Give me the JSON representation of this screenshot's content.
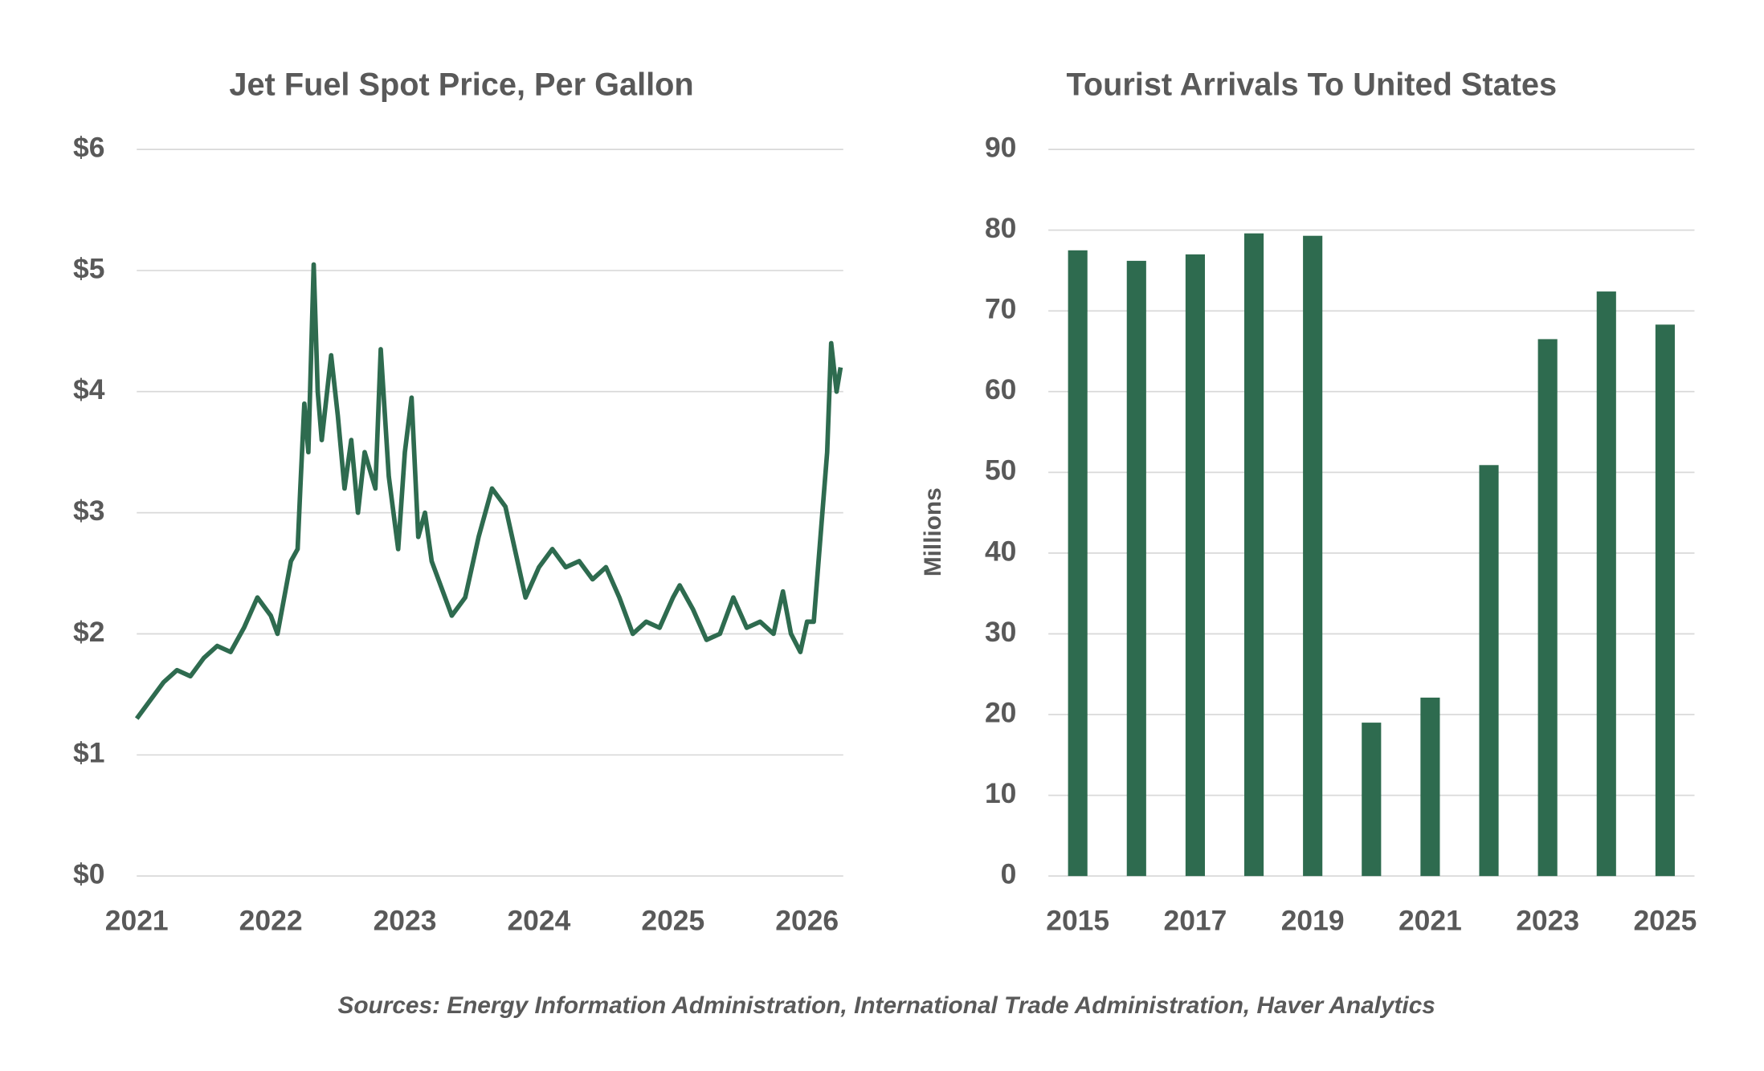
{
  "chart_data": [
    {
      "type": "line",
      "title": "Jet Fuel Spot Price, Per Gallon",
      "color": "#2e6b4f",
      "grid": true,
      "x": [
        2021.0,
        2021.1,
        2021.2,
        2021.3,
        2021.4,
        2021.5,
        2021.6,
        2021.7,
        2021.8,
        2021.9,
        2022.0,
        2022.05,
        2022.1,
        2022.15,
        2022.2,
        2022.22,
        2022.25,
        2022.28,
        2022.32,
        2022.35,
        2022.38,
        2022.45,
        2022.5,
        2022.55,
        2022.6,
        2022.65,
        2022.7,
        2022.78,
        2022.82,
        2022.88,
        2022.95,
        2023.0,
        2023.05,
        2023.1,
        2023.15,
        2023.2,
        2023.3,
        2023.35,
        2023.45,
        2023.55,
        2023.65,
        2023.75,
        2023.82,
        2023.9,
        2024.0,
        2024.1,
        2024.2,
        2024.3,
        2024.4,
        2024.5,
        2024.6,
        2024.7,
        2024.8,
        2024.9,
        2025.0,
        2025.05,
        2025.15,
        2025.25,
        2025.35,
        2025.45,
        2025.55,
        2025.65,
        2025.75,
        2025.82,
        2025.88,
        2025.95,
        2026.0,
        2026.05,
        2026.1,
        2026.15,
        2026.18,
        2026.22,
        2026.25
      ],
      "values": [
        1.3,
        1.45,
        1.6,
        1.7,
        1.65,
        1.8,
        1.9,
        1.85,
        2.05,
        2.3,
        2.15,
        2.0,
        2.3,
        2.6,
        2.7,
        3.2,
        3.9,
        3.5,
        5.05,
        4.0,
        3.6,
        4.3,
        3.8,
        3.2,
        3.6,
        3.0,
        3.5,
        3.2,
        4.35,
        3.3,
        2.7,
        3.5,
        3.95,
        2.8,
        3.0,
        2.6,
        2.3,
        2.15,
        2.3,
        2.8,
        3.2,
        3.05,
        2.7,
        2.3,
        2.55,
        2.7,
        2.55,
        2.6,
        2.45,
        2.55,
        2.3,
        2.0,
        2.1,
        2.05,
        2.3,
        2.4,
        2.2,
        1.95,
        2.0,
        2.3,
        2.05,
        2.1,
        2.0,
        2.35,
        2.0,
        1.85,
        2.1,
        2.1,
        2.8,
        3.5,
        4.4,
        4.0,
        4.2
      ],
      "xlim": [
        2021,
        2026.27
      ],
      "xticks": [
        2021,
        2022,
        2023,
        2024,
        2025,
        2026
      ],
      "ylim": [
        0,
        6
      ],
      "yticks": [
        {
          "value": 0,
          "label": "$0"
        },
        {
          "value": 1,
          "label": "$1"
        },
        {
          "value": 2,
          "label": "$2"
        },
        {
          "value": 3,
          "label": "$3"
        },
        {
          "value": 4,
          "label": "$4"
        },
        {
          "value": 5,
          "label": "$5"
        },
        {
          "value": 6,
          "label": "$6"
        }
      ]
    },
    {
      "type": "bar",
      "title": "Tourist Arrivals To United States",
      "color": "#2e6b4f",
      "grid": true,
      "ylabel": "Millions",
      "categories": [
        "2015",
        null,
        "2017",
        null,
        "2019",
        null,
        "2021",
        null,
        "2023",
        null,
        "2025"
      ],
      "values": [
        77.5,
        76.2,
        77,
        79.6,
        79.3,
        19,
        22.1,
        50.9,
        66.5,
        72.4,
        68.3
      ],
      "ylim": [
        0,
        90
      ],
      "yticks": [
        0,
        10,
        20,
        30,
        40,
        50,
        60,
        70,
        80,
        90
      ]
    }
  ],
  "source": "Sources: Energy Information Administration, International Trade Administration, Haver Analytics"
}
